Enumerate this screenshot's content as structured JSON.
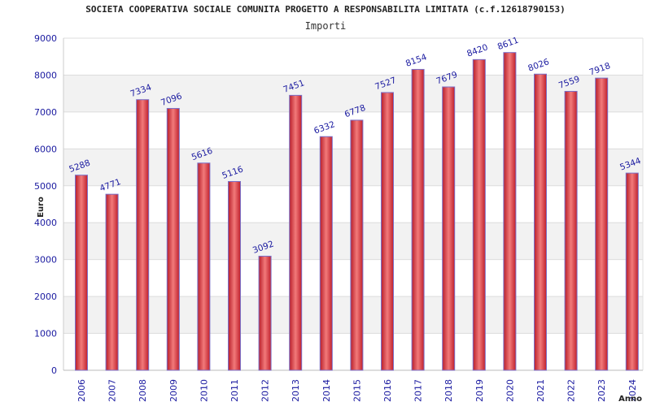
{
  "header": {
    "title": "SOCIETA COOPERATIVA SOCIALE COMUNITA PROGETTO A RESPONSABILITA LIMITATA (c.f.12618790153)",
    "subtitle": "Importi"
  },
  "colors": {
    "bar": "#e23a3a",
    "bar_edge": "#7a70c8",
    "band": "#f2f2f2",
    "grid": "#dcdcdc",
    "label": "#1a1aa0"
  },
  "chart_data": {
    "type": "bar",
    "title": "SOCIETA COOPERATIVA SOCIALE COMUNITA PROGETTO A RESPONSABILITA LIMITATA (c.f.12618790153)",
    "subtitle": "Importi",
    "xlabel": "Anno",
    "ylabel": "Euro",
    "ylim": [
      0,
      9000
    ],
    "yticks": [
      0,
      1000,
      2000,
      3000,
      4000,
      5000,
      6000,
      7000,
      8000,
      9000
    ],
    "grid": true,
    "categories": [
      "2006",
      "2007",
      "2008",
      "2009",
      "2010",
      "2011",
      "2012",
      "2013",
      "2014",
      "2015",
      "2016",
      "2017",
      "2018",
      "2019",
      "2020",
      "2021",
      "2022",
      "2023",
      "2024"
    ],
    "values": [
      5288,
      4771,
      7334,
      7096,
      5616,
      5116,
      3092,
      7451,
      6332,
      6778,
      7527,
      8154,
      7679,
      8420,
      8611,
      8026,
      7559,
      7918,
      5344
    ]
  }
}
